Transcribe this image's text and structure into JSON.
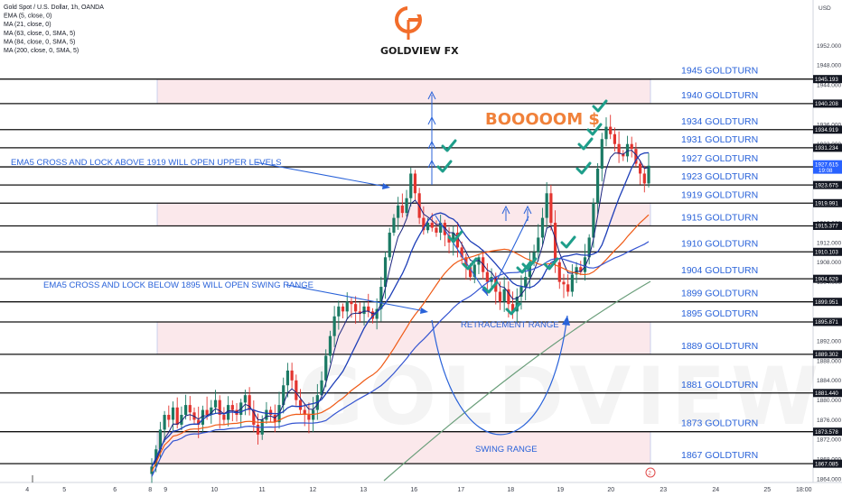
{
  "header": {
    "legend": [
      "Gold Spot / U.S. Dollar, 1h, OANDA",
      "EMA (5, close, 0)",
      "MA (21, close, 0)",
      "MA (63, close, 0, SMA, 5)",
      "MA (84, close, 0, SMA, 5)",
      "MA (200, close, 0, SMA, 5)"
    ],
    "logo_text": "GOLDVIEW FX",
    "currency": "USD",
    "watermark": "GOLDVIEW FX"
  },
  "annotations": {
    "boom": "BOOOOOM $",
    "upper_note": "EMA5 CROSS AND LOCK ABOVE 1919 WILL OPEN UPPER LEVELS",
    "lower_note": "EMA5 CROSS AND LOCK BELOW 1895 WILL OPEN SWING RANGE",
    "retracement": "RETRACEMENT RANGE",
    "swing": "SWING RANGE"
  },
  "chart_data": {
    "type": "candlestick",
    "symbol": "Gold Spot / U.S. Dollar",
    "interval": "1h",
    "ylim": [
      1864,
      1956
    ],
    "y_ticks": [
      "1952.000",
      "1948.000",
      "1944.000",
      "1940.000",
      "1936.000",
      "1932.000",
      "1928.000",
      "1924.000",
      "1920.000",
      "1916.000",
      "1912.000",
      "1908.000",
      "1904.000",
      "1900.000",
      "1896.000",
      "1892.000",
      "1888.000",
      "1884.000",
      "1880.000",
      "1876.000",
      "1872.000",
      "1868.000",
      "1864.000"
    ],
    "x_ticks": [
      "4",
      "5",
      "6",
      "8",
      "9",
      "10",
      "11",
      "12",
      "13",
      "16",
      "17",
      "18",
      "19",
      "20",
      "23",
      "24",
      "25",
      "18:00"
    ],
    "levels": [
      {
        "price": 1945.193,
        "label": "1945 GOLDTURN",
        "tag": "1945.193"
      },
      {
        "price": 1940.208,
        "label": "1940 GOLDTURN",
        "tag": "1940.208"
      },
      {
        "price": 1934.919,
        "label": "1934 GOLDTURN",
        "tag": "1934.919"
      },
      {
        "price": 1931.234,
        "label": "1931 GOLDTURN",
        "tag": "1931.234"
      },
      {
        "price": 1927.36,
        "label": "1927 GOLDTURN",
        "tag": "1927.360"
      },
      {
        "price": 1923.675,
        "label": "1923 GOLDTURN",
        "tag": "1923.675"
      },
      {
        "price": 1919.991,
        "label": "1919 GOLDTURN",
        "tag": "1919.991"
      },
      {
        "price": 1915.377,
        "label": "1915 GOLDTURN",
        "tag": "1915.377"
      },
      {
        "price": 1910.103,
        "label": "1910 GOLDTURN",
        "tag": "1910.103"
      },
      {
        "price": 1904.629,
        "label": "1904 GOLDTURN",
        "tag": "1904.629"
      },
      {
        "price": 1899.951,
        "label": "1899 GOLDTURN",
        "tag": "1899.951"
      },
      {
        "price": 1895.871,
        "label": "1895 GOLDTURN",
        "tag": "1895.871"
      },
      {
        "price": 1889.302,
        "label": "1889 GOLDTURN",
        "tag": "1889.302"
      },
      {
        "price": 1881.44,
        "label": "1881 GOLDTURN",
        "tag": "1881.440"
      },
      {
        "price": 1873.578,
        "label": "1873 GOLDTURN",
        "tag": "1873.578"
      },
      {
        "price": 1867.085,
        "label": "1867 GOLDTURN",
        "tag": "1867.085"
      }
    ],
    "current_price": {
      "price": "1927.615",
      "countdown": "19:08"
    },
    "zones": [
      {
        "from": 1940.208,
        "to": 1945.193
      },
      {
        "from": 1915.377,
        "to": 1919.991
      },
      {
        "from": 1889.302,
        "to": 1895.871
      },
      {
        "from": 1867.085,
        "to": 1873.578
      }
    ],
    "close_series": [
      1866.5,
      1870,
      1874,
      1877,
      1876,
      1878.5,
      1875,
      1877,
      1879,
      1877.5,
      1876,
      1875,
      1878,
      1877,
      1878.5,
      1880,
      1877,
      1876,
      1879,
      1878,
      1877,
      1879.5,
      1881,
      1878,
      1875,
      1873,
      1876,
      1878,
      1877,
      1875.5,
      1879,
      1883,
      1886,
      1884,
      1880,
      1878,
      1877,
      1876,
      1878,
      1881,
      1884,
      1889,
      1893,
      1897,
      1899,
      1898,
      1900,
      1899.5,
      1898,
      1897.5,
      1899,
      1898,
      1896.5,
      1898.5,
      1903,
      1909,
      1914,
      1917,
      1919.5,
      1918,
      1921,
      1926,
      1922,
      1917,
      1914.5,
      1916,
      1915,
      1914,
      1916,
      1913.5,
      1912,
      1914,
      1911,
      1909,
      1907,
      1905,
      1907.5,
      1909,
      1906,
      1904,
      1905,
      1902,
      1900,
      1902.5,
      1899.5,
      1898,
      1901,
      1903,
      1905,
      1908,
      1910,
      1913,
      1917,
      1922,
      1916,
      1908,
      1904,
      1903.5,
      1902,
      1905.5,
      1907,
      1906,
      1909,
      1913,
      1920,
      1927,
      1933,
      1935.5,
      1934,
      1932,
      1930,
      1929.5,
      1932,
      1931,
      1928,
      1926,
      1924,
      1927.6
    ]
  }
}
